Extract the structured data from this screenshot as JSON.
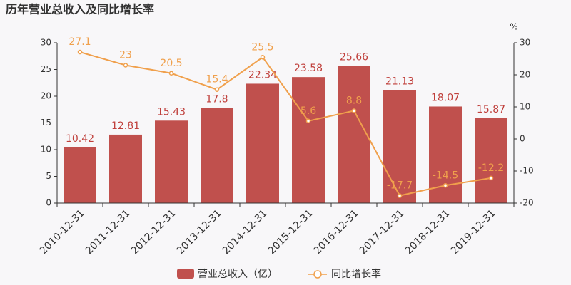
{
  "chart_data": {
    "type": "bar-line",
    "title": "历年营业总收入及同比增长率",
    "categories": [
      "2010-12-31",
      "2011-12-31",
      "2012-12-31",
      "2013-12-31",
      "2014-12-31",
      "2015-12-31",
      "2016-12-31",
      "2017-12-31",
      "2018-12-31",
      "2019-12-31"
    ],
    "series": [
      {
        "name": "营业总收入（亿）",
        "type": "bar",
        "color": "#c0504d",
        "label_color": "#c0403c",
        "values": [
          10.42,
          12.81,
          15.43,
          17.8,
          22.34,
          23.58,
          25.66,
          21.13,
          18.07,
          15.87
        ]
      },
      {
        "name": "同比增长率",
        "type": "line",
        "axis": "y2",
        "color": "#f0a04c",
        "values": [
          27.1,
          23,
          20.5,
          15.4,
          25.5,
          5.6,
          8.8,
          -17.7,
          -14.5,
          -12.2
        ]
      }
    ],
    "ylim": [
      0,
      30
    ],
    "yticks": [
      0,
      5,
      10,
      15,
      20,
      25,
      30
    ],
    "y2lim": [
      -20,
      30
    ],
    "y2ticks": [
      -20,
      -10,
      0,
      10,
      20,
      30
    ],
    "y2label": "%"
  }
}
